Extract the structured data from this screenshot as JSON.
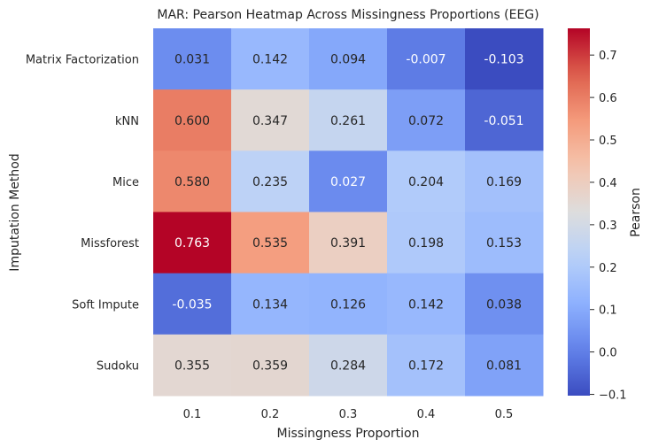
{
  "chart_data": {
    "type": "heatmap",
    "title": "MAR: Pearson Heatmap Across Missingness Proportions (EEG)",
    "xlabel": "Missingness Proportion",
    "ylabel": "Imputation Method",
    "colorbar_label": "Pearson",
    "x_categories": [
      "0.1",
      "0.2",
      "0.3",
      "0.4",
      "0.5"
    ],
    "y_categories": [
      "Matrix Factorization",
      "kNN",
      "Mice",
      "Missforest",
      "Soft Impute",
      "Sudoku"
    ],
    "values": [
      [
        0.031,
        0.142,
        0.094,
        -0.007,
        -0.103
      ],
      [
        0.6,
        0.347,
        0.261,
        0.072,
        -0.051
      ],
      [
        0.58,
        0.235,
        0.027,
        0.204,
        0.169
      ],
      [
        0.763,
        0.535,
        0.391,
        0.198,
        0.153
      ],
      [
        -0.035,
        0.134,
        0.126,
        0.142,
        0.038
      ],
      [
        0.355,
        0.359,
        0.284,
        0.172,
        0.081
      ]
    ],
    "value_labels": [
      [
        "0.031",
        "0.142",
        "0.094",
        "-0.007",
        "-0.103"
      ],
      [
        "0.600",
        "0.347",
        "0.261",
        "0.072",
        "-0.051"
      ],
      [
        "0.580",
        "0.235",
        "0.027",
        "0.204",
        "0.169"
      ],
      [
        "0.763",
        "0.535",
        "0.391",
        "0.198",
        "0.153"
      ],
      [
        "-0.035",
        "0.134",
        "0.126",
        "0.142",
        "0.038"
      ],
      [
        "0.355",
        "0.359",
        "0.284",
        "0.172",
        "0.081"
      ]
    ],
    "vmin": -0.103,
    "vmax": 0.763,
    "colormap": "coolwarm",
    "colorbar_ticks": [
      -0.1,
      0.0,
      0.1,
      0.2,
      0.3,
      0.4,
      0.5,
      0.6,
      0.7
    ],
    "colorbar_tick_labels": [
      "−0.1",
      "0.0",
      "0.1",
      "0.2",
      "0.3",
      "0.4",
      "0.5",
      "0.6",
      "0.7"
    ],
    "annotations": true,
    "grid": false
  }
}
